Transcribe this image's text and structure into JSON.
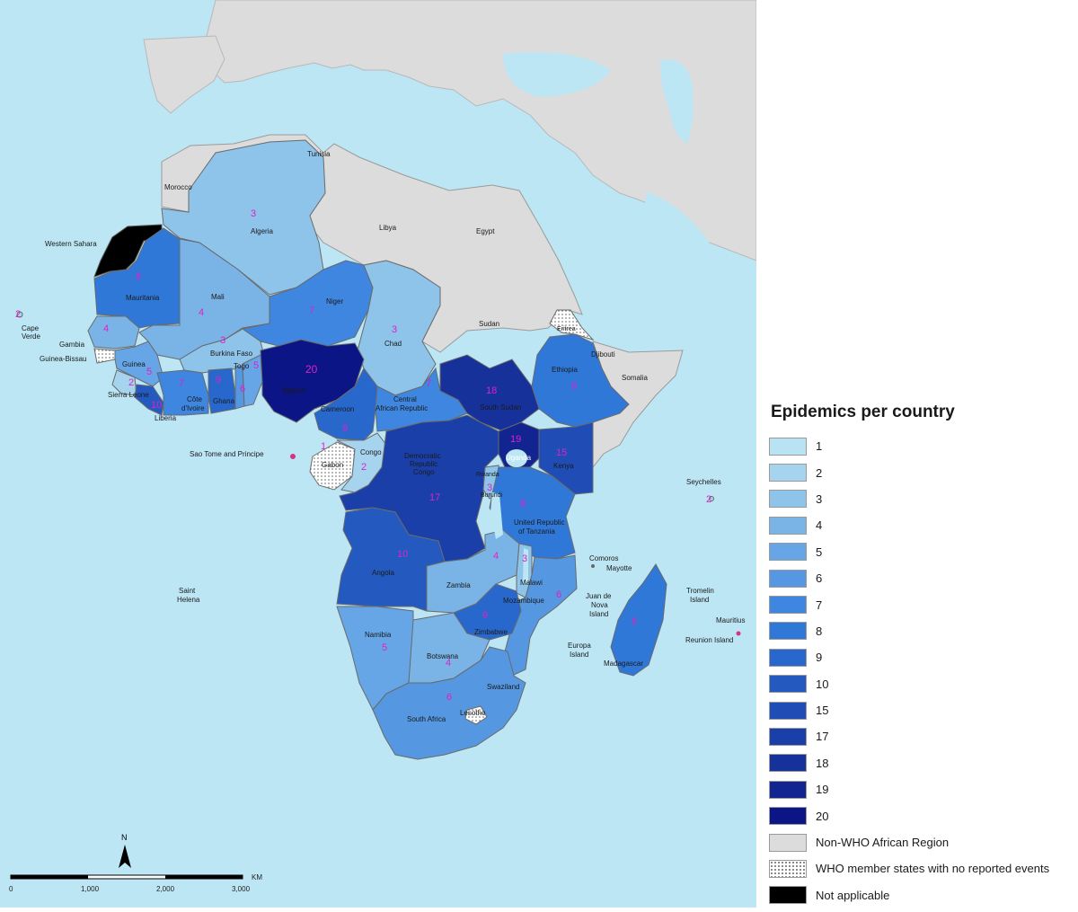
{
  "legend": {
    "title": "Epidemics per country",
    "items": [
      {
        "label": "1",
        "color": "#b9e3f3"
      },
      {
        "label": "2",
        "color": "#a6d4ef"
      },
      {
        "label": "3",
        "color": "#8ec3ea"
      },
      {
        "label": "4",
        "color": "#7ab3e6"
      },
      {
        "label": "5",
        "color": "#66a6e6"
      },
      {
        "label": "6",
        "color": "#5597e0"
      },
      {
        "label": "7",
        "color": "#3e86df"
      },
      {
        "label": "8",
        "color": "#2f78d8"
      },
      {
        "label": "9",
        "color": "#2868cc"
      },
      {
        "label": "10",
        "color": "#245ac0"
      },
      {
        "label": "15",
        "color": "#1f4db5"
      },
      {
        "label": "17",
        "color": "#1b3fa8"
      },
      {
        "label": "18",
        "color": "#17319b"
      },
      {
        "label": "19",
        "color": "#12248f"
      },
      {
        "label": "20",
        "color": "#0c1585"
      },
      {
        "label": "Non-WHO African Region",
        "color": "#dcdcdc"
      },
      {
        "label": "WHO member states with no reported events",
        "color": "#ffffff",
        "pattern": "dotted"
      },
      {
        "label": "Not applicable",
        "color": "#000000"
      }
    ]
  },
  "scale_bar": {
    "ticks": [
      "0",
      "1,000",
      "2,000",
      "3,000"
    ],
    "unit": "KM",
    "north": "N"
  },
  "places": {
    "tunisia": "Tunisia",
    "morocco": "Morocco",
    "western_sahara": "Western Sahara",
    "algeria": "Algeria",
    "libya": "Libya",
    "egypt": "Egypt",
    "mauritania": "Mauritania",
    "mali": "Mali",
    "niger": "Niger",
    "chad": "Chad",
    "sudan": "Sudan",
    "eritrea": "Eritrea",
    "djibouti": "Djibouti",
    "somalia": "Somalia",
    "ethiopia": "Ethiopia",
    "cape_verde_1": "Cape",
    "cape_verde_2": "Verde",
    "gambia": "Gambia",
    "guinea_bissau": "Guinea-Bissau",
    "guinea": "Guinea",
    "sierra_leone": "Sierra Leone",
    "liberia": "Liberia",
    "burkina_faso": "Burkina Faso",
    "togo": "Togo",
    "cote_1": "Côte",
    "cote_2": "d'Ivoire",
    "ghana": "Ghana",
    "nigeria": "Nigeria",
    "cameroon": "Cameroon",
    "car_1": "Central",
    "car_2": "African Republic",
    "south_sudan": "South Sudan",
    "sao_tome": "Sao Tome and Principe",
    "gabon": "Gabon",
    "congo": "Congo",
    "drc_1": "Democratic",
    "drc_2": "Republic",
    "drc_3": "Congo",
    "uganda": "Uganda",
    "kenya": "Kenya",
    "rwanda": "Rwanda",
    "burundi": "Burundi",
    "tanzania_1": "United Republic",
    "tanzania_2": "of Tanzania",
    "seychelles": "Seychelles",
    "angola": "Angola",
    "zambia": "Zambia",
    "malawi": "Malawi",
    "mozambique": "Mozambique",
    "comoros": "Comoros",
    "mayotte": "Mayotte",
    "juan_1": "Juan de",
    "juan_2": "Nova",
    "juan_3": "Island",
    "europa_1": "Europa",
    "europa_2": "Island",
    "tromelin_1": "Tromelin",
    "tromelin_2": "Island",
    "mauritius": "Mauritius",
    "reunion": "Reunion Island",
    "madagascar": "Madagascar",
    "saint_1": "Saint",
    "saint_2": "Helena",
    "namibia": "Namibia",
    "botswana": "Botswana",
    "zimbabwe": "Zimbabwe",
    "swaziland": "Swaziland",
    "lesotho": "Lesotho",
    "south_africa": "South Africa"
  },
  "counts": {
    "algeria": "3",
    "mauritania": "8",
    "mali": "4",
    "niger": "7",
    "chad": "3",
    "cape_verde": "2",
    "senegal": "4",
    "burkina_faso": "3",
    "guinea": "5",
    "sierra_leone": "2",
    "liberia": "10",
    "cote_divoire": "7",
    "ghana": "9",
    "togo": "6",
    "benin": "5",
    "nigeria": "20",
    "cameroon": "9",
    "car": "7",
    "south_sudan": "18",
    "ethiopia": "8",
    "uganda": "19",
    "kenya": "15",
    "gabon": "1",
    "congo": "2",
    "drc": "17",
    "rwanda": "3",
    "tanzania": "8",
    "seychelles": "2",
    "angola": "10",
    "zambia": "4",
    "malawi": "3",
    "mozambique": "6",
    "zimbabwe": "9",
    "madagascar": "8",
    "namibia": "5",
    "botswana": "4",
    "south_africa": "6"
  }
}
